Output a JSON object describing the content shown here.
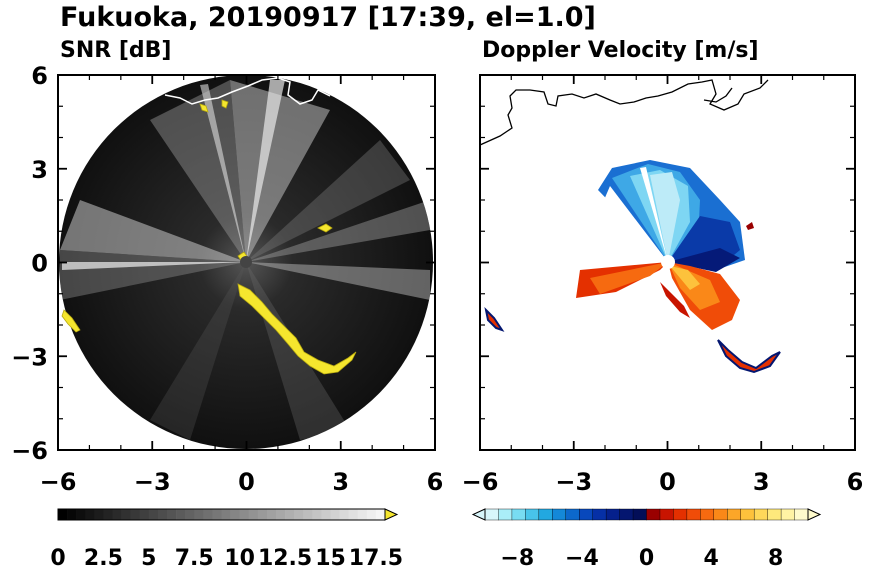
{
  "figure": {
    "title": "Fukuoka, 20190917 [17:39, el=1.0]"
  },
  "chart_data": [
    {
      "type": "heatmap",
      "title": "SNR [dB]",
      "xlabel": "",
      "ylabel": "",
      "xlim": [
        -6,
        6
      ],
      "ylim": [
        -6,
        6
      ],
      "x_ticks": [
        "−6",
        "−3",
        "0",
        "3",
        "6"
      ],
      "y_ticks": [
        "6",
        "3",
        "0",
        "−3",
        "−6"
      ],
      "range_km": 6,
      "colorbar": {
        "min": 0,
        "max": 18,
        "ticks": [
          "0",
          "2.5",
          "5",
          "7.5",
          "10",
          "12.5",
          "15",
          "17.5"
        ],
        "tick_values": [
          0,
          2.5,
          5,
          7.5,
          10,
          12.5,
          15,
          17.5
        ],
        "extend": "max",
        "extend_color": "#f5e62e"
      }
    },
    {
      "type": "heatmap",
      "title": "Doppler Velocity [m/s]",
      "xlabel": "",
      "ylabel": "",
      "xlim": [
        -6,
        6
      ],
      "ylim": [
        -6,
        6
      ],
      "x_ticks": [
        "−6",
        "−3",
        "0",
        "3",
        "6"
      ],
      "y_ticks": [],
      "colorbar": {
        "min": -10,
        "max": 10,
        "ticks": [
          "−8",
          "−4",
          "0",
          "4",
          "8"
        ],
        "tick_values": [
          -8,
          -4,
          0,
          4,
          8
        ],
        "extend": "both",
        "colors": [
          "#d8f6fb",
          "#aaeef8",
          "#78dcf2",
          "#48c4ea",
          "#22a8e0",
          "#1488d8",
          "#0c68cc",
          "#0848bc",
          "#0630a6",
          "#05208c",
          "#041670",
          "#030e58",
          "#9a0000",
          "#c81400",
          "#e43000",
          "#f04c08",
          "#f66a10",
          "#fa8818",
          "#fca628",
          "#fdc23c",
          "#fed85a",
          "#fee97c",
          "#fff3a4",
          "#fffbcc"
        ]
      }
    }
  ]
}
